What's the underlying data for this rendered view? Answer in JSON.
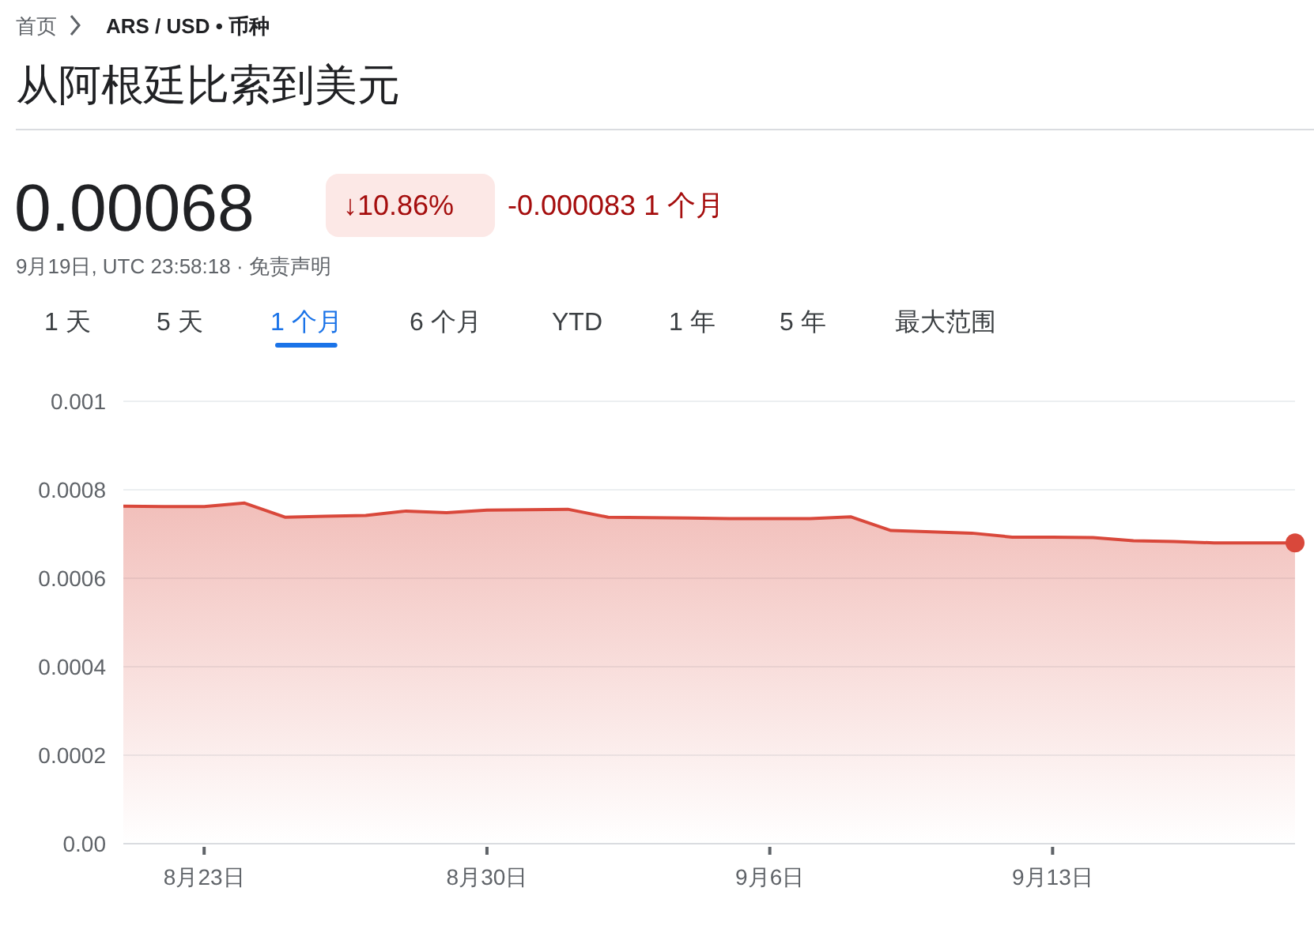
{
  "chart_data": {
    "type": "area",
    "title": "从阿根廷比索到美元",
    "annotations": [
      "首页",
      "ARS / USD • 币种",
      "0.00068",
      "↓10.86%",
      "-0.000083 1 个月",
      "9月19日, UTC 23:58:18 · 免责声明",
      "1 天",
      "5 天",
      "1 个月",
      "6 个月",
      "YTD",
      "1 年",
      "5 年",
      "最大范围"
    ],
    "x": [
      "--08-21",
      "--08-22",
      "--08-23",
      "--08-24",
      "--08-25",
      "--08-26",
      "--08-27",
      "--08-28",
      "--08-29",
      "--08-30",
      "--08-31",
      "--09-01",
      "--09-02",
      "--09-03",
      "--09-04",
      "--09-05",
      "--09-06",
      "--09-07",
      "--09-08",
      "--09-09",
      "--09-10",
      "--09-11",
      "--09-12",
      "--09-13",
      "--09-14",
      "--09-15",
      "--09-16",
      "--09-17",
      "--09-18",
      "--09-19"
    ],
    "series": [
      {
        "color": "#d9483b",
        "values": [
          0.000763,
          0.000762,
          0.000762,
          0.00077,
          0.000738,
          0.00074,
          0.000742,
          0.000752,
          0.000748,
          0.000754,
          0.000755,
          0.000756,
          0.000738,
          0.000737,
          0.000736,
          0.000735,
          0.000735,
          0.000735,
          0.000739,
          0.000708,
          0.000705,
          0.000702,
          0.000693,
          0.000693,
          0.000692,
          0.000685,
          0.000683,
          0.00068,
          0.00068,
          0.00068
        ]
      }
    ],
    "xlim": [
      "--08-21",
      "--09-19"
    ],
    "xticks": [
      {
        "value": "--08-23",
        "label": "8月23日"
      },
      {
        "value": "--08-30",
        "label": "8月30日"
      },
      {
        "value": "--09-06",
        "label": "9月6日"
      },
      {
        "value": "--09-13",
        "label": "9月13日"
      }
    ],
    "ylim": [
      0,
      0.001
    ],
    "yticks": [
      {
        "value": 0,
        "label": "0.00"
      },
      0.0002,
      0.0004,
      0.0006,
      0.0008,
      0.001
    ],
    "grid": "y"
  }
}
